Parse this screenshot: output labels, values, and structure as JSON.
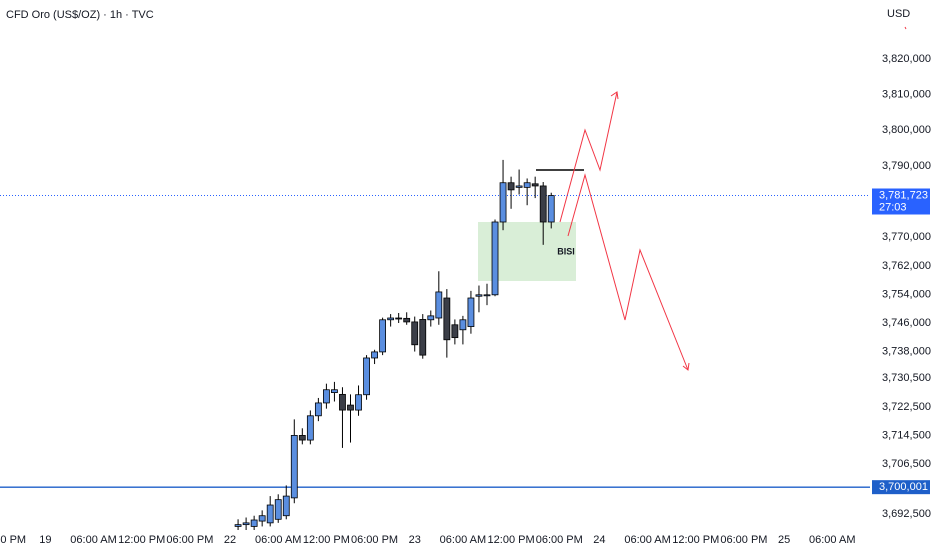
{
  "chart_data": {
    "type": "candlestick",
    "title": "CFD Oro (US$/OZ) · 1h · TVC",
    "currency": "USD",
    "bull_color": "#5a8ee0",
    "bear_color": "#3b3e47",
    "x": [
      29,
      30,
      31,
      32,
      33,
      34,
      35,
      36,
      37,
      38,
      39,
      40,
      41,
      42,
      43,
      44,
      45,
      46,
      47,
      48,
      49,
      50,
      51,
      52,
      53,
      54,
      55,
      56,
      57,
      58,
      59,
      60,
      61,
      62,
      63,
      64,
      65,
      66,
      67,
      68
    ],
    "open": [
      3689000,
      3689500,
      3689000,
      3690500,
      3690000,
      3691000,
      3692000,
      3697000,
      3714500,
      3713200,
      3720000,
      3723600,
      3726500,
      3726000,
      3723000,
      3721600,
      3725900,
      3736200,
      3737900,
      3746900,
      3747400,
      3747300,
      3746300,
      3747000,
      3746900,
      3747400,
      3753000,
      3745500,
      3744100,
      3745000,
      3753500,
      3753900,
      3753900,
      3774300,
      3785300,
      3784000,
      3784000,
      3785000,
      3784400,
      3774300
    ],
    "high": [
      3691000,
      3691500,
      3692000,
      3693500,
      3697500,
      3698000,
      3700500,
      3719000,
      3716500,
      3721500,
      3725000,
      3729000,
      3729500,
      3728000,
      3726000,
      3728500,
      3737000,
      3738500,
      3747500,
      3748500,
      3748800,
      3749000,
      3747800,
      3748500,
      3749500,
      3760500,
      3755500,
      3747000,
      3748000,
      3755000,
      3756500,
      3757000,
      3775000,
      3791700,
      3787000,
      3789000,
      3786500,
      3787000,
      3785500,
      3782500
    ],
    "low": [
      3688000,
      3688000,
      3688000,
      3689000,
      3689000,
      3690000,
      3691000,
      3695500,
      3712000,
      3712000,
      3718500,
      3722000,
      3724000,
      3711000,
      3712500,
      3720000,
      3724500,
      3734500,
      3737000,
      3745000,
      3746000,
      3745500,
      3738000,
      3736000,
      3745000,
      3745500,
      3736300,
      3740000,
      3740000,
      3743000,
      3749000,
      3751000,
      3753500,
      3772000,
      3778000,
      3782000,
      3779000,
      3781000,
      3767900,
      3772500
    ],
    "close": [
      3689500,
      3690000,
      3690800,
      3692000,
      3695000,
      3696500,
      3697500,
      3714500,
      3713200,
      3720000,
      3723600,
      3727300,
      3727300,
      3721600,
      3721600,
      3725900,
      3736200,
      3737900,
      3746900,
      3747400,
      3747300,
      3746300,
      3739900,
      3737000,
      3748000,
      3754700,
      3741300,
      3741900,
      3746900,
      3753000,
      3753900,
      3753900,
      3774300,
      3785300,
      3783300,
      3784400,
      3785300,
      3784400,
      3774300,
      3781700
    ],
    "xlim": [
      -0.65,
      107.7
    ],
    "ylim": [
      3688000,
      3836500
    ],
    "xticks": [
      {
        "value": 1,
        "label": "0 PM"
      },
      {
        "value": 5,
        "label": "19"
      },
      {
        "value": 11,
        "label": "06:00 AM"
      },
      {
        "value": 17,
        "label": "12:00 PM"
      },
      {
        "value": 23,
        "label": "06:00 PM"
      },
      {
        "value": 28,
        "label": "22"
      },
      {
        "value": 34,
        "label": "06:00 AM"
      },
      {
        "value": 40,
        "label": "12:00 PM"
      },
      {
        "value": 46,
        "label": "06:00 PM"
      },
      {
        "value": 51,
        "label": "23"
      },
      {
        "value": 57,
        "label": "06:00 AM"
      },
      {
        "value": 63,
        "label": "12:00 PM"
      },
      {
        "value": 69,
        "label": "06:00 PM"
      },
      {
        "value": 74,
        "label": "24"
      },
      {
        "value": 80,
        "label": "06:00 AM"
      },
      {
        "value": 86,
        "label": "12:00 PM"
      },
      {
        "value": 92,
        "label": "06:00 PM"
      },
      {
        "value": 97,
        "label": "25"
      },
      {
        "value": 103,
        "label": "06:00 AM"
      }
    ],
    "yticks": [
      {
        "value": 3820000,
        "label": "3,820,000"
      },
      {
        "value": 3810000,
        "label": "3,810,000"
      },
      {
        "value": 3800000,
        "label": "3,800,000"
      },
      {
        "value": 3790000,
        "label": "3,790,000"
      },
      {
        "value": 3770000,
        "label": "3,770,000"
      },
      {
        "value": 3762000,
        "label": "3,762,000"
      },
      {
        "value": 3754000,
        "label": "3,754,000"
      },
      {
        "value": 3746000,
        "label": "3,746,000"
      },
      {
        "value": 3738000,
        "label": "3,738,000"
      },
      {
        "value": 3730500,
        "label": "3,730,500"
      },
      {
        "value": 3722500,
        "label": "3,722,500"
      },
      {
        "value": 3714500,
        "label": "3,714,500"
      },
      {
        "value": 3706500,
        "label": "3,706,500"
      },
      {
        "value": 3692500,
        "label": "3,692,500"
      }
    ],
    "price_lines": [
      {
        "value": 3781723,
        "label": "3,781,723",
        "countdown": "27:03",
        "color": "#2962ff",
        "style": "dotted"
      },
      {
        "value": 3700001,
        "label": "3,700,001",
        "color": "#1e5fc9",
        "style": "solid"
      }
    ],
    "annotation": "BISI"
  }
}
